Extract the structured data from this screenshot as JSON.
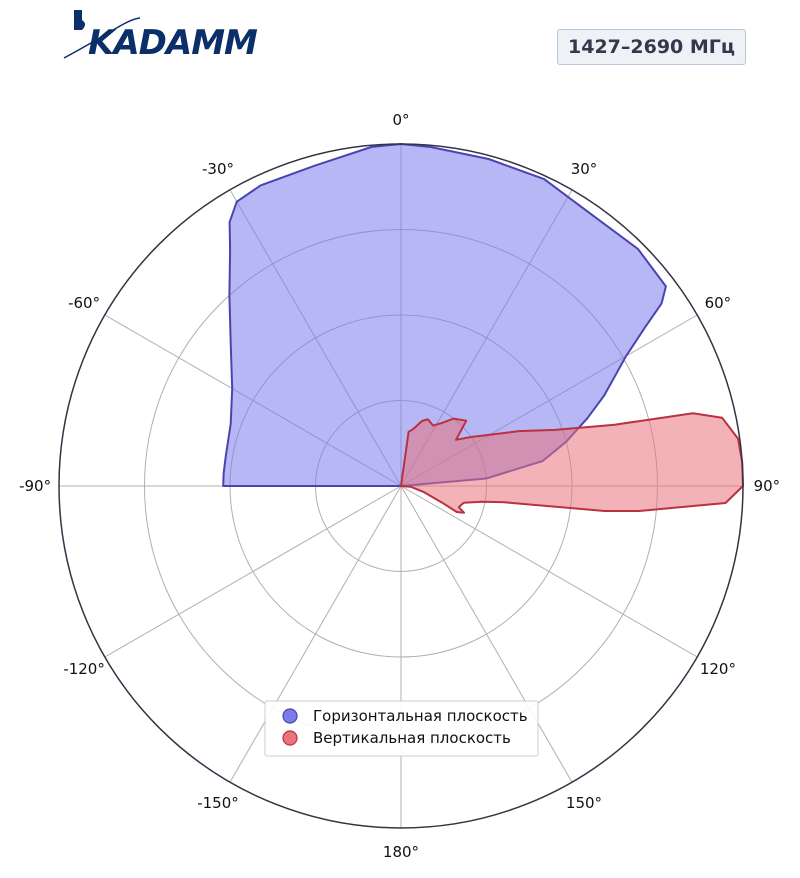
{
  "logo": {
    "text": "KADAMM",
    "color": "#0b2f6b"
  },
  "badge": {
    "label": "1427–2690 МГц"
  },
  "chart_data": {
    "type": "polar",
    "angle_unit": "deg",
    "zero_location": "top",
    "direction": "clockwise",
    "r_range": [
      0,
      1
    ],
    "r_rings": [
      0.25,
      0.5,
      0.75,
      1.0
    ],
    "grid": true,
    "theta_ticks": [
      {
        "angle": 0,
        "label": "0°"
      },
      {
        "angle": 30,
        "label": "30°"
      },
      {
        "angle": 60,
        "label": "60°"
      },
      {
        "angle": 90,
        "label": "90°"
      },
      {
        "angle": 120,
        "label": "120°"
      },
      {
        "angle": 150,
        "label": "150°"
      },
      {
        "angle": 180,
        "label": "180°"
      },
      {
        "angle": -150,
        "label": "-150°"
      },
      {
        "angle": -120,
        "label": "-120°"
      },
      {
        "angle": -90,
        "label": "-90°"
      },
      {
        "angle": -60,
        "label": "-60°"
      },
      {
        "angle": -30,
        "label": "-30°"
      }
    ],
    "legend_position": "bottom-center",
    "series": [
      {
        "name": "Горизонтальная плоскость",
        "color": "#4a44b0",
        "fill": "#7b7bee",
        "points": [
          [
            -90,
            0.52
          ],
          [
            -86,
            0.52
          ],
          [
            -80,
            0.52
          ],
          [
            -70,
            0.53
          ],
          [
            -60,
            0.57
          ],
          [
            -50,
            0.65
          ],
          [
            -42,
            0.75
          ],
          [
            -36,
            0.85
          ],
          [
            -33,
            0.92
          ],
          [
            -30,
            0.96
          ],
          [
            -25,
            0.97
          ],
          [
            -15,
            0.97
          ],
          [
            -5,
            0.995
          ],
          [
            0,
            1.0
          ],
          [
            5,
            0.995
          ],
          [
            15,
            0.99
          ],
          [
            25,
            0.99
          ],
          [
            35,
            0.97
          ],
          [
            45,
            0.98
          ],
          [
            53,
            0.97
          ],
          [
            55,
            0.93
          ],
          [
            57,
            0.85
          ],
          [
            60,
            0.76
          ],
          [
            63,
            0.7
          ],
          [
            66,
            0.65
          ],
          [
            70,
            0.58
          ],
          [
            75,
            0.5
          ],
          [
            80,
            0.42
          ],
          [
            85,
            0.25
          ],
          [
            90,
            0.0
          ]
        ]
      },
      {
        "name": "Вертикальная плоскость",
        "color": "#b8323f",
        "fill": "#e8737b",
        "points": [
          [
            0,
            0.0
          ],
          [
            8,
            0.16
          ],
          [
            12,
            0.17
          ],
          [
            18,
            0.2
          ],
          [
            22,
            0.21
          ],
          [
            28,
            0.2
          ],
          [
            33,
            0.22
          ],
          [
            38,
            0.25
          ],
          [
            45,
            0.27
          ],
          [
            50,
            0.21
          ],
          [
            55,
            0.25
          ],
          [
            60,
            0.3
          ],
          [
            65,
            0.38
          ],
          [
            70,
            0.48
          ],
          [
            74,
            0.65
          ],
          [
            76,
            0.88
          ],
          [
            78,
            0.96
          ],
          [
            82,
            0.995
          ],
          [
            86,
            1.0
          ],
          [
            90,
            1.0
          ],
          [
            93,
            0.95
          ],
          [
            96,
            0.7
          ],
          [
            97,
            0.6
          ],
          [
            99,
            0.3
          ],
          [
            101,
            0.24
          ],
          [
            105,
            0.19
          ],
          [
            110,
            0.18
          ],
          [
            113,
            0.2
          ],
          [
            115,
            0.18
          ],
          [
            112,
            0.13
          ],
          [
            105,
            0.07
          ],
          [
            95,
            0.03
          ],
          [
            90,
            0.0
          ]
        ]
      }
    ]
  }
}
